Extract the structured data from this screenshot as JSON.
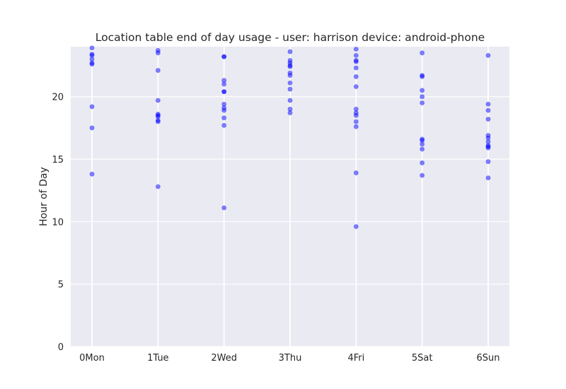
{
  "chart_data": {
    "type": "scatter",
    "title": "Location table end of day usage -  user: harrison device: android-phone",
    "xlabel": "",
    "ylabel": "Hour of Day",
    "categories": [
      "0Mon",
      "1Tue",
      "2Wed",
      "3Thu",
      "4Fri",
      "5Sat",
      "6Sun"
    ],
    "ylim": [
      0,
      24
    ],
    "yticks": [
      0,
      5,
      10,
      15,
      20
    ],
    "grid": true,
    "colors": {
      "point": "#0000ff",
      "background": "#eaeaf2",
      "grid": "#ffffff"
    },
    "series": [
      {
        "points": [
          [
            "0Mon",
            23.9
          ],
          [
            "0Mon",
            23.4
          ],
          [
            "0Mon",
            23.3
          ],
          [
            "0Mon",
            23.0
          ],
          [
            "0Mon",
            22.7
          ],
          [
            "0Mon",
            22.6
          ],
          [
            "0Mon",
            19.2
          ],
          [
            "0Mon",
            17.5
          ],
          [
            "0Mon",
            13.8
          ],
          [
            "1Tue",
            23.7
          ],
          [
            "1Tue",
            23.5
          ],
          [
            "1Tue",
            22.1
          ],
          [
            "1Tue",
            19.7
          ],
          [
            "1Tue",
            18.6
          ],
          [
            "1Tue",
            18.5
          ],
          [
            "1Tue",
            18.4
          ],
          [
            "1Tue",
            18.1
          ],
          [
            "1Tue",
            18.0
          ],
          [
            "1Tue",
            12.8
          ],
          [
            "2Wed",
            23.2
          ],
          [
            "2Wed",
            23.2
          ],
          [
            "2Wed",
            21.3
          ],
          [
            "2Wed",
            21.0
          ],
          [
            "2Wed",
            20.4
          ],
          [
            "2Wed",
            20.4
          ],
          [
            "2Wed",
            19.4
          ],
          [
            "2Wed",
            19.1
          ],
          [
            "2Wed",
            18.9
          ],
          [
            "2Wed",
            18.3
          ],
          [
            "2Wed",
            17.7
          ],
          [
            "2Wed",
            11.1
          ],
          [
            "3Thu",
            23.6
          ],
          [
            "3Thu",
            22.9
          ],
          [
            "3Thu",
            22.7
          ],
          [
            "3Thu",
            22.5
          ],
          [
            "3Thu",
            22.4
          ],
          [
            "3Thu",
            21.9
          ],
          [
            "3Thu",
            21.7
          ],
          [
            "3Thu",
            21.1
          ],
          [
            "3Thu",
            20.6
          ],
          [
            "3Thu",
            19.7
          ],
          [
            "3Thu",
            19.0
          ],
          [
            "3Thu",
            18.7
          ],
          [
            "4Fri",
            23.8
          ],
          [
            "4Fri",
            23.3
          ],
          [
            "4Fri",
            22.9
          ],
          [
            "4Fri",
            22.8
          ],
          [
            "4Fri",
            22.3
          ],
          [
            "4Fri",
            21.6
          ],
          [
            "4Fri",
            20.8
          ],
          [
            "4Fri",
            19.0
          ],
          [
            "4Fri",
            18.7
          ],
          [
            "4Fri",
            18.5
          ],
          [
            "4Fri",
            18.0
          ],
          [
            "4Fri",
            17.6
          ],
          [
            "4Fri",
            13.9
          ],
          [
            "4Fri",
            9.6
          ],
          [
            "5Sat",
            23.5
          ],
          [
            "5Sat",
            21.7
          ],
          [
            "5Sat",
            21.6
          ],
          [
            "5Sat",
            20.5
          ],
          [
            "5Sat",
            20.0
          ],
          [
            "5Sat",
            19.5
          ],
          [
            "5Sat",
            16.6
          ],
          [
            "5Sat",
            16.5
          ],
          [
            "5Sat",
            16.2
          ],
          [
            "5Sat",
            15.8
          ],
          [
            "5Sat",
            14.7
          ],
          [
            "5Sat",
            13.7
          ],
          [
            "6Sun",
            23.3
          ],
          [
            "6Sun",
            19.4
          ],
          [
            "6Sun",
            18.9
          ],
          [
            "6Sun",
            18.2
          ],
          [
            "6Sun",
            16.9
          ],
          [
            "6Sun",
            16.7
          ],
          [
            "6Sun",
            16.4
          ],
          [
            "6Sun",
            16.1
          ],
          [
            "6Sun",
            16.0
          ],
          [
            "6Sun",
            15.9
          ],
          [
            "6Sun",
            14.8
          ],
          [
            "6Sun",
            13.5
          ]
        ]
      }
    ]
  }
}
